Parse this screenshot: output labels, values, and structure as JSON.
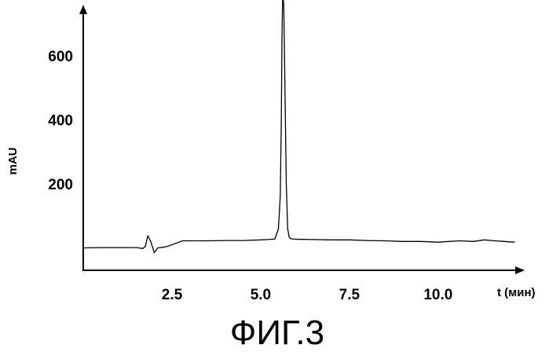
{
  "chart_data": {
    "type": "line",
    "xlabel": "t (мин)",
    "ylabel": "mAU",
    "xlim": [
      0.0,
      12.15
    ],
    "ylim": [
      -70,
      760
    ],
    "x_ticks": [
      2.5,
      5.0,
      7.5,
      10.0
    ],
    "x_tick_labels": [
      "2.5",
      "5.0",
      "7.5",
      "10.0"
    ],
    "y_ticks": [
      200,
      400,
      600
    ],
    "y_tick_labels": [
      "200",
      "400",
      "600"
    ],
    "grid": false,
    "legend": "none",
    "series": [
      {
        "color": "#000000",
        "x": [
          0.0,
          0.5,
          1.0,
          1.5,
          1.68,
          1.75,
          1.82,
          1.9,
          2.0,
          2.1,
          2.25,
          2.4,
          2.6,
          2.8,
          3.0,
          3.5,
          4.0,
          4.5,
          5.0,
          5.2,
          5.4,
          5.5,
          5.55,
          5.58,
          5.6,
          5.62,
          5.65,
          5.68,
          5.72,
          5.76,
          5.8,
          5.85,
          5.9,
          6.0,
          6.5,
          7.0,
          7.5,
          8.0,
          8.5,
          9.0,
          9.5,
          10.0,
          10.3,
          10.6,
          11.0,
          11.3,
          11.6,
          12.15
        ],
        "y": [
          0,
          1,
          1,
          1,
          -2,
          5,
          38,
          20,
          -15,
          0,
          2,
          6,
          14,
          22,
          22,
          22,
          23,
          23,
          25,
          26,
          28,
          60,
          160,
          380,
          650,
          790,
          760,
          520,
          200,
          60,
          34,
          29,
          28,
          27,
          26,
          25,
          25,
          23,
          22,
          20,
          20,
          18,
          20,
          22,
          20,
          25,
          22,
          18
        ]
      }
    ]
  },
  "figure": {
    "caption": "ФИГ.3"
  }
}
